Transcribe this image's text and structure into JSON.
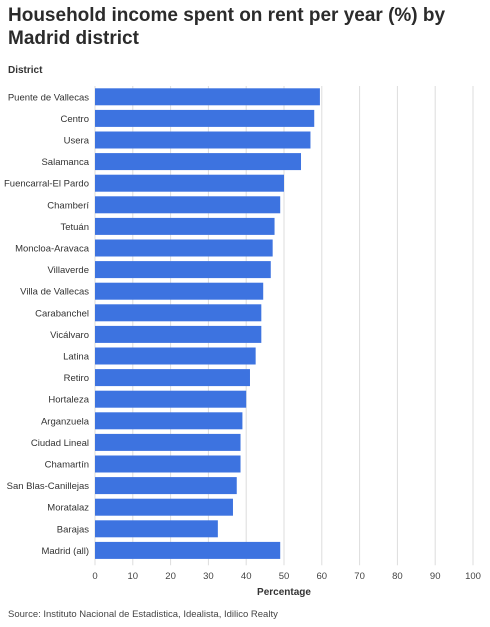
{
  "title": "Household income spent on rent per year (%) by Madrid district",
  "source": "Source: Instituto Nacional de Estadistica, Idealista, Idilico Realty",
  "colors": {
    "bar": "#3d73e0",
    "grid": "#dddddd"
  },
  "chart_data": {
    "type": "bar",
    "orientation": "horizontal",
    "title": "Household income spent on rent per year (%) by Madrid district",
    "xlabel": "Percentage",
    "ylabel": "District",
    "xlim": [
      0,
      100
    ],
    "xticks": [
      0,
      10,
      20,
      30,
      40,
      50,
      60,
      70,
      80,
      90,
      100
    ],
    "grid": true,
    "categories": [
      "Puente de Vallecas",
      "Centro",
      "Usera",
      "Salamanca",
      "Fuencarral-El Pardo",
      "Chamberí",
      "Tetuán",
      "Moncloa-Aravaca",
      "Villaverde",
      "Villa de Vallecas",
      "Carabanchel",
      "Vicálvaro",
      "Latina",
      "Retiro",
      "Hortaleza",
      "Arganzuela",
      "Ciudad Lineal",
      "Chamartín",
      "San Blas-Canillejas",
      "Moratalaz",
      "Barajas",
      "Madrid (all)"
    ],
    "values": [
      59.5,
      58,
      57,
      54.5,
      50,
      49,
      47.5,
      47,
      46.5,
      44.5,
      44,
      44,
      42.5,
      41,
      40,
      39,
      38.5,
      38.5,
      37.5,
      36.5,
      32.5,
      49
    ]
  }
}
